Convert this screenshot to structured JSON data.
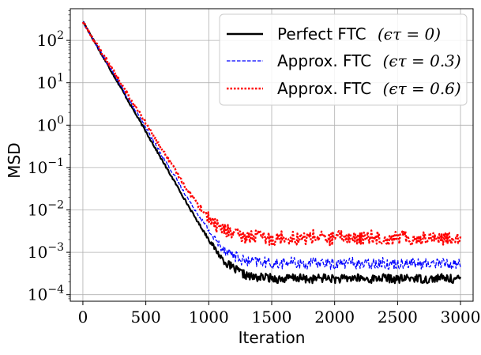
{
  "chart_data": {
    "type": "line",
    "xlabel": "Iteration",
    "ylabel": "MSD",
    "xscale": "linear",
    "yscale": "log",
    "xlim": [
      -100,
      3100
    ],
    "ylim": [
      7e-05,
      560
    ],
    "xticks": [
      {
        "value": 0,
        "label": "0"
      },
      {
        "value": 500,
        "label": "500"
      },
      {
        "value": 1000,
        "label": "1000"
      },
      {
        "value": 1500,
        "label": "1500"
      },
      {
        "value": 2000,
        "label": "2000"
      },
      {
        "value": 2500,
        "label": "2500"
      },
      {
        "value": 3000,
        "label": "3000"
      }
    ],
    "yticks": [
      {
        "value": 0.0001,
        "base": "10",
        "exp": "−4"
      },
      {
        "value": 0.001,
        "base": "10",
        "exp": "−3"
      },
      {
        "value": 0.01,
        "base": "10",
        "exp": "−2"
      },
      {
        "value": 0.1,
        "base": "10",
        "exp": "−1"
      },
      {
        "value": 1,
        "base": "10",
        "exp": "0"
      },
      {
        "value": 10,
        "base": "10",
        "exp": "1"
      },
      {
        "value": 100,
        "base": "10",
        "exp": "2"
      }
    ],
    "grid": true,
    "legend_position": "top-right",
    "series": [
      {
        "name": "Perfect FTC",
        "math": "(ϵτ = 0)",
        "legend_label": "Perfect FTC (ϵτ = 0)",
        "color": "#000000",
        "style": "solid",
        "start": 280,
        "slope_log10_per_iter": -0.0052,
        "floor": 0.00024,
        "noise_amp_log10": 0.1
      },
      {
        "name": "Approx. FTC",
        "math": "(ϵτ = 0.3)",
        "legend_label": "Approx. FTC (ϵτ = 0.3)",
        "color": "#0000ff",
        "style": "dashed",
        "start": 270,
        "slope_log10_per_iter": -0.005,
        "floor": 0.00055,
        "noise_amp_log10": 0.13
      },
      {
        "name": "Approx. FTC",
        "math": "(ϵτ = 0.6)",
        "legend_label": "Approx. FTC (ϵτ = 0.6)",
        "color": "#ff0000",
        "style": "dotted",
        "start": 275,
        "slope_log10_per_iter": -0.0048,
        "floor": 0.0022,
        "noise_amp_log10": 0.16
      }
    ]
  },
  "legend": {
    "entries": [
      {
        "name": "Perfect FTC",
        "math": "(ϵτ = 0)"
      },
      {
        "name": "Approx. FTC",
        "math": "(ϵτ = 0.3)"
      },
      {
        "name": "Approx. FTC",
        "math": "(ϵτ = 0.6)"
      }
    ]
  }
}
